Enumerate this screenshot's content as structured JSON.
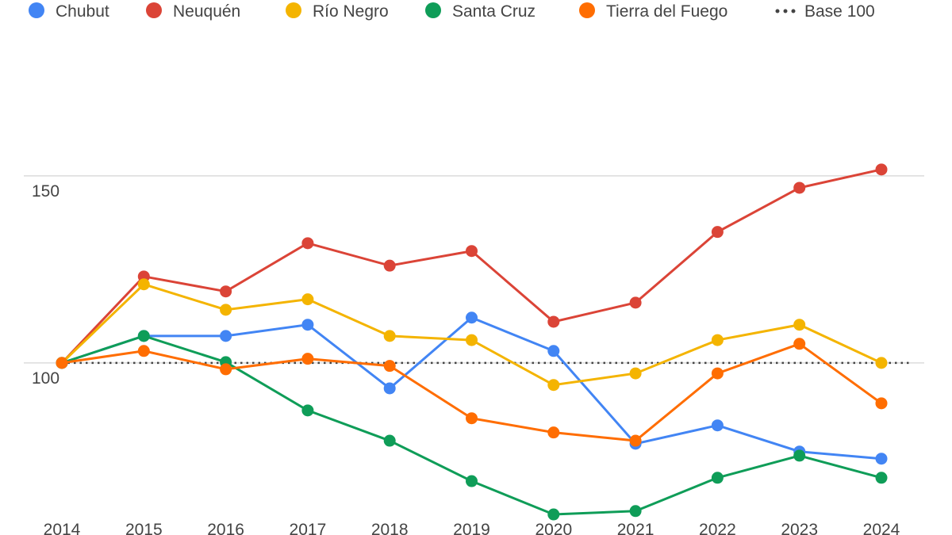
{
  "chart_data": {
    "type": "line",
    "title": "",
    "xlabel": "",
    "ylabel": "",
    "x": [
      "2014",
      "2015",
      "2016",
      "2017",
      "2018",
      "2019",
      "2020",
      "2021",
      "2022",
      "2023",
      "2024"
    ],
    "yticks": [
      100,
      150
    ],
    "ylim": [
      54,
      197
    ],
    "grid": true,
    "legend_position": "top",
    "series": [
      {
        "name": "Chubut",
        "color": "#4285F4",
        "values": [
          100,
          107.2,
          107.2,
          110.2,
          93.2,
          112.1,
          103.2,
          78.4,
          83.3,
          76.3,
          74.4
        ]
      },
      {
        "name": "Neuquén",
        "color": "#DB4437",
        "values": [
          100,
          123.1,
          119.1,
          132,
          126,
          129.9,
          111,
          116.1,
          135,
          146.8,
          151.7
        ]
      },
      {
        "name": "Río Negro",
        "color": "#F4B400",
        "values": [
          100,
          121,
          114.2,
          117,
          107.2,
          106.1,
          94.1,
          97.2,
          106.1,
          110.2,
          100
        ]
      },
      {
        "name": "Santa Cruz",
        "color": "#0F9D58",
        "values": [
          100,
          107.2,
          100.2,
          87.3,
          79.2,
          68.4,
          59.5,
          60.4,
          69.3,
          75.2,
          69.3
        ]
      },
      {
        "name": "Tierra del Fuego",
        "color": "#FF6D01",
        "values": [
          100,
          103.2,
          98.3,
          101.1,
          99.2,
          85.2,
          81.4,
          79.2,
          97.2,
          105.1,
          89.2
        ]
      }
    ],
    "reference_line": {
      "name": "Base 100",
      "value": 100,
      "color": "#444444",
      "style": "dotted"
    }
  }
}
